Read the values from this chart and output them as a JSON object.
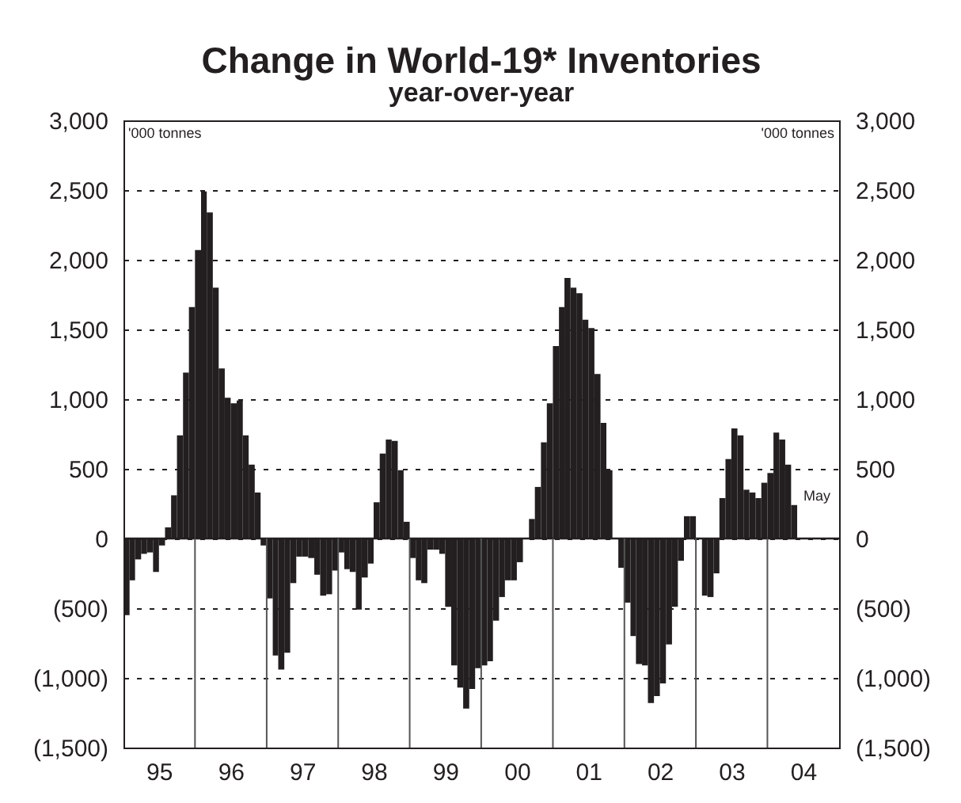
{
  "chart_data": {
    "type": "bar",
    "title": "Change in World-19* Inventories",
    "subtitle": "year-over-year",
    "x": [
      "1995-01",
      "1995-02",
      "1995-03",
      "1995-04",
      "1995-05",
      "1995-06",
      "1995-07",
      "1995-08",
      "1995-09",
      "1995-10",
      "1995-11",
      "1995-12",
      "1996-01",
      "1996-02",
      "1996-03",
      "1996-04",
      "1996-05",
      "1996-06",
      "1996-07",
      "1996-08",
      "1996-09",
      "1996-10",
      "1996-11",
      "1996-12",
      "1997-01",
      "1997-02",
      "1997-03",
      "1997-04",
      "1997-05",
      "1997-06",
      "1997-07",
      "1997-08",
      "1997-09",
      "1997-10",
      "1997-11",
      "1997-12",
      "1998-01",
      "1998-02",
      "1998-03",
      "1998-04",
      "1998-05",
      "1998-06",
      "1998-07",
      "1998-08",
      "1998-09",
      "1998-10",
      "1998-11",
      "1998-12",
      "1999-01",
      "1999-02",
      "1999-03",
      "1999-04",
      "1999-05",
      "1999-06",
      "1999-07",
      "1999-08",
      "1999-09",
      "1999-10",
      "1999-11",
      "1999-12",
      "2000-01",
      "2000-02",
      "2000-03",
      "2000-04",
      "2000-05",
      "2000-06",
      "2000-07",
      "2000-08",
      "2000-09",
      "2000-10",
      "2000-11",
      "2000-12",
      "2001-01",
      "2001-02",
      "2001-03",
      "2001-04",
      "2001-05",
      "2001-06",
      "2001-07",
      "2001-08",
      "2001-09",
      "2001-10",
      "2001-11",
      "2001-12",
      "2002-01",
      "2002-02",
      "2002-03",
      "2002-04",
      "2002-05",
      "2002-06",
      "2002-07",
      "2002-08",
      "2002-09",
      "2002-10",
      "2002-11",
      "2002-12",
      "2003-01",
      "2003-02",
      "2003-03",
      "2003-04",
      "2003-05",
      "2003-06",
      "2003-07",
      "2003-08",
      "2003-09",
      "2003-10",
      "2003-11",
      "2003-12",
      "2004-01",
      "2004-02",
      "2004-03",
      "2004-04",
      "2004-05"
    ],
    "values": [
      -550,
      -300,
      -150,
      -110,
      -100,
      -240,
      -50,
      80,
      310,
      740,
      1190,
      1660,
      2070,
      2490,
      2340,
      1800,
      1220,
      1010,
      970,
      990,
      740,
      530,
      330,
      -50,
      -430,
      -840,
      -940,
      -820,
      -320,
      -130,
      -130,
      -140,
      -260,
      -410,
      -400,
      -230,
      -100,
      -220,
      -240,
      -510,
      -280,
      -180,
      260,
      610,
      710,
      700,
      490,
      120,
      -140,
      -300,
      -320,
      -80,
      -80,
      -110,
      -490,
      -910,
      -1070,
      -1220,
      -1080,
      -930,
      -910,
      -880,
      -590,
      -420,
      -300,
      -300,
      -170,
      null,
      140,
      370,
      690,
      970,
      1380,
      1660,
      1870,
      1800,
      1760,
      1570,
      1510,
      1180,
      830,
      490,
      0,
      -210,
      -460,
      -700,
      -900,
      -910,
      -1180,
      -1130,
      -1040,
      -760,
      -490,
      -160,
      160,
      160,
      null,
      -410,
      -420,
      -250,
      290,
      570,
      790,
      740,
      350,
      330,
      290,
      400,
      470,
      760,
      710,
      530,
      240
    ],
    "color": "#231f20",
    "xlim": [
      "1995-01",
      "2005-01"
    ],
    "xticks": [
      {
        "value": "1995-07",
        "label": "95"
      },
      {
        "value": "1996-07",
        "label": "96"
      },
      {
        "value": "1997-07",
        "label": "97"
      },
      {
        "value": "1998-07",
        "label": "98"
      },
      {
        "value": "1999-07",
        "label": "99"
      },
      {
        "value": "2000-07",
        "label": "00"
      },
      {
        "value": "2001-07",
        "label": "01"
      },
      {
        "value": "2002-07",
        "label": "02"
      },
      {
        "value": "2003-07",
        "label": "03"
      },
      {
        "value": "2004-07",
        "label": "04"
      }
    ],
    "ylim": [
      -1500,
      3000
    ],
    "yticks": [
      {
        "value": -1500,
        "label": "(1,500)"
      },
      {
        "value": -1000,
        "label": "(1,000)"
      },
      {
        "value": -500,
        "label": "(500)"
      },
      {
        "value": 0,
        "label": "0"
      },
      {
        "value": 500,
        "label": "500"
      },
      {
        "value": 1000,
        "label": "1,000"
      },
      {
        "value": 1500,
        "label": "1,500"
      },
      {
        "value": 2000,
        "label": "2,000"
      },
      {
        "value": 2500,
        "label": "2,500"
      },
      {
        "value": 3000,
        "label": "3,000"
      }
    ],
    "y2lim": [
      -1500,
      3000
    ],
    "y2ticks": [
      {
        "value": -1500,
        "label": "(1,500)"
      },
      {
        "value": -1000,
        "label": "(1,000)"
      },
      {
        "value": -500,
        "label": "(500)"
      },
      {
        "value": 0,
        "label": "0"
      },
      {
        "value": 500,
        "label": "500"
      },
      {
        "value": 1000,
        "label": "1,000"
      },
      {
        "value": 1500,
        "label": "1,500"
      },
      {
        "value": 2000,
        "label": "2,000"
      },
      {
        "value": 2500,
        "label": "2,500"
      },
      {
        "value": 3000,
        "label": "3,000"
      }
    ],
    "grid": "y",
    "ref_lines": [
      {
        "axis": "y",
        "value": 0,
        "color": "#231f20"
      },
      {
        "axis": "x",
        "value": "1996-01",
        "color": "#555555"
      },
      {
        "axis": "x",
        "value": "1997-01",
        "color": "#555555"
      },
      {
        "axis": "x",
        "value": "1998-01",
        "color": "#555555"
      },
      {
        "axis": "x",
        "value": "1999-01",
        "color": "#555555"
      },
      {
        "axis": "x",
        "value": "2000-01",
        "color": "#555555"
      },
      {
        "axis": "x",
        "value": "2001-01",
        "color": "#555555"
      },
      {
        "axis": "x",
        "value": "2002-01",
        "color": "#555555"
      },
      {
        "axis": "x",
        "value": "2003-01",
        "color": "#555555"
      },
      {
        "axis": "x",
        "value": "2004-01",
        "color": "#555555"
      }
    ],
    "annotations": [
      "'000 tonnes",
      "'000 tonnes",
      {
        "text": "May",
        "x": "2004-05",
        "y": 240
      }
    ]
  }
}
